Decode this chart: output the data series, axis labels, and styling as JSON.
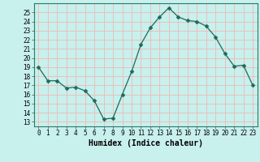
{
  "x": [
    0,
    1,
    2,
    3,
    4,
    5,
    6,
    7,
    8,
    9,
    10,
    11,
    12,
    13,
    14,
    15,
    16,
    17,
    18,
    19,
    20,
    21,
    22,
    23
  ],
  "y": [
    19,
    17.5,
    17.5,
    16.7,
    16.8,
    16.4,
    15.3,
    13.3,
    13.4,
    16.0,
    18.5,
    21.5,
    23.3,
    24.5,
    25.5,
    24.5,
    24.1,
    24.0,
    23.5,
    22.3,
    20.5,
    19.1,
    19.2,
    17.0
  ],
  "line_color": "#1a6b5e",
  "marker_color": "#1a6b5e",
  "bg_color": "#c8f0ec",
  "grid_color": "#f0b8b8",
  "ylabel_values": [
    13,
    14,
    15,
    16,
    17,
    18,
    19,
    20,
    21,
    22,
    23,
    24,
    25
  ],
  "xlabel": "Humidex (Indice chaleur)",
  "ylim": [
    12.5,
    26.0
  ],
  "xlim": [
    -0.5,
    23.5
  ],
  "tick_fontsize": 5.5,
  "xlabel_fontsize": 7.0
}
